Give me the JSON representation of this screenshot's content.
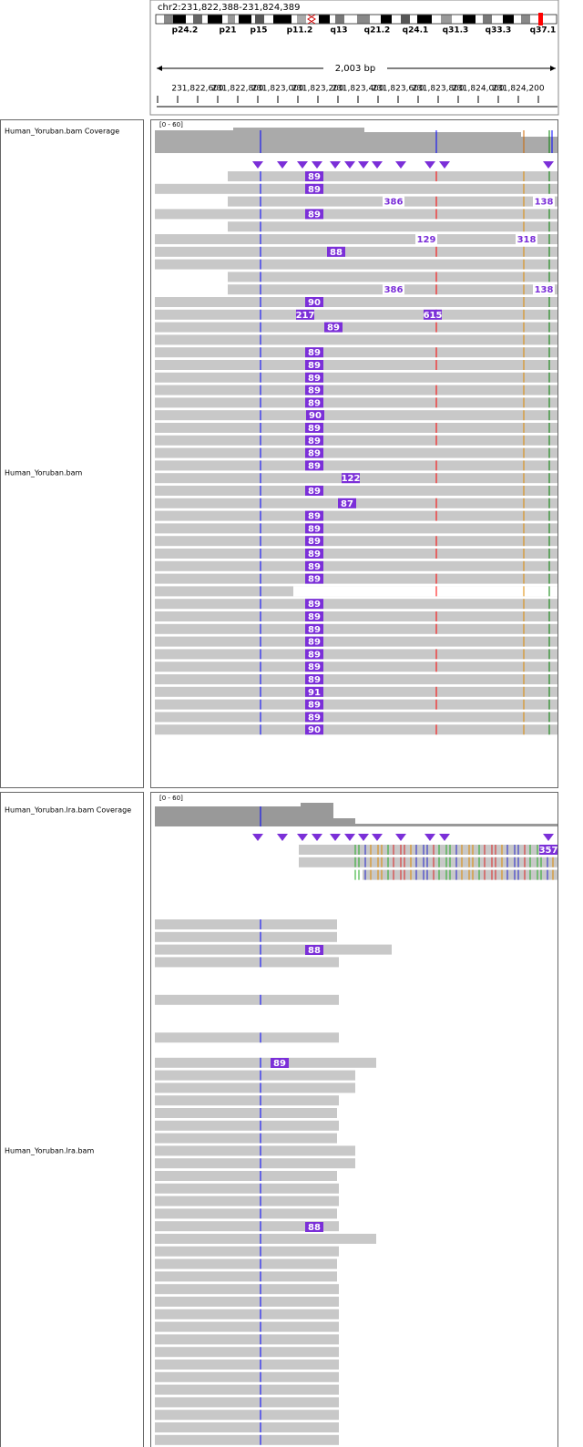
{
  "header": {
    "locus": "chr2:231,822,388-231,824,389",
    "cytobands": [
      "p24.2",
      "p21",
      "p15",
      "p11.2",
      "q13",
      "q21.2",
      "q24.1",
      "q31.3",
      "q33.3",
      "q37.1"
    ],
    "span": "2,003 bp",
    "ruler": [
      "231,822,600",
      "231,822,800",
      "231,823,000",
      "231,823,200",
      "231,823,400",
      "231,823,600",
      "231,823,800",
      "231,824,000",
      "231,824,200"
    ]
  },
  "tracks": [
    {
      "coverage_name": "Human_Yoruban.bam Coverage",
      "coverage_range": "[0 - 60]",
      "name": "Human_Yoruban.bam",
      "insertions": [
        "89",
        "89",
        "386",
        "138",
        "89",
        "129",
        "318",
        "88",
        "386",
        "138",
        "90",
        "217",
        "615",
        "89",
        "89",
        "89",
        "89",
        "89",
        "89",
        "90",
        "89",
        "89",
        "89",
        "89",
        "122",
        "89",
        "87",
        "89",
        "89",
        "89",
        "89",
        "89",
        "89",
        "89",
        "89",
        "89",
        "89",
        "89",
        "89",
        "89",
        "91",
        "89",
        "89",
        "90"
      ]
    },
    {
      "coverage_name": "Human_Yoruban.lra.bam Coverage",
      "coverage_range": "[0 - 60]",
      "name": "Human_Yoruban.lra.bam",
      "insertions": [
        "357",
        "88",
        "89",
        "88"
      ]
    }
  ]
}
